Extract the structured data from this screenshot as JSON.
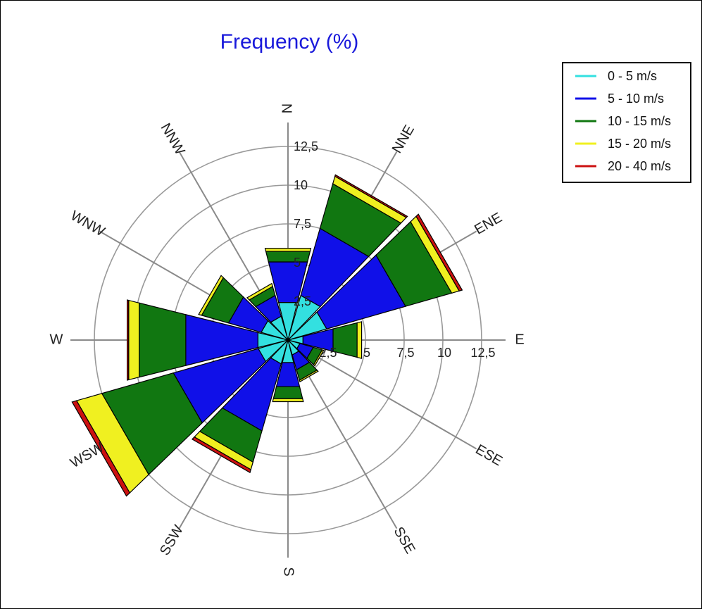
{
  "chart_data": {
    "type": "wind-rose",
    "title": "Frequency (%)",
    "directions": [
      "N",
      "NNE",
      "ENE",
      "E",
      "ESE",
      "SSE",
      "S",
      "SSW",
      "WSW",
      "W",
      "WNW",
      "NNW"
    ],
    "ring_values": [
      2.5,
      5,
      7.5,
      10,
      12.5
    ],
    "ring_labels": [
      "2,5",
      "5",
      "7,5",
      "10",
      "12,5"
    ],
    "r_max": 13.5,
    "series": [
      {
        "name": "0 - 5 m/s",
        "color": "#33e0e0",
        "values": [
          2.5,
          3.0,
          2.6,
          1.0,
          0.8,
          1.0,
          1.5,
          1.6,
          2.0,
          2.0,
          1.8,
          1.6
        ]
      },
      {
        "name": "5 - 10 m/s",
        "color": "#1010e8",
        "values": [
          2.7,
          4.5,
          5.3,
          2.0,
          0.9,
          1.0,
          1.6,
          4.5,
          5.7,
          4.8,
          2.2,
          1.4
        ]
      },
      {
        "name": "10 - 15 m/s",
        "color": "#117711",
        "values": [
          0.7,
          3.0,
          3.1,
          1.6,
          0.6,
          0.7,
          0.8,
          2.1,
          4.8,
          3.1,
          1.8,
          0.6
        ]
      },
      {
        "name": "15 - 20 m/s",
        "color": "#f0f020",
        "values": [
          0.2,
          0.5,
          0.5,
          0.3,
          0.1,
          0.1,
          0.2,
          0.5,
          1.7,
          0.7,
          0.2,
          0.2
        ]
      },
      {
        "name": "20 - 40 m/s",
        "color": "#cc1111",
        "values": [
          0.0,
          0.1,
          0.2,
          0.0,
          0.0,
          0.0,
          0.0,
          0.2,
          0.3,
          0.1,
          0.0,
          0.0
        ]
      }
    ],
    "legend_position": "top-right",
    "grid": true
  }
}
